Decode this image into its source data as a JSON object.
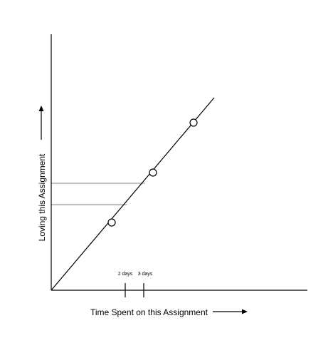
{
  "diagram": {
    "x_axis_label": "Time Spent on this Assignment",
    "y_axis_label": "Loving this Assignment",
    "tick_labels": [
      "2 days",
      "3 days"
    ],
    "line_color": "#000000",
    "background": "#ffffff"
  }
}
